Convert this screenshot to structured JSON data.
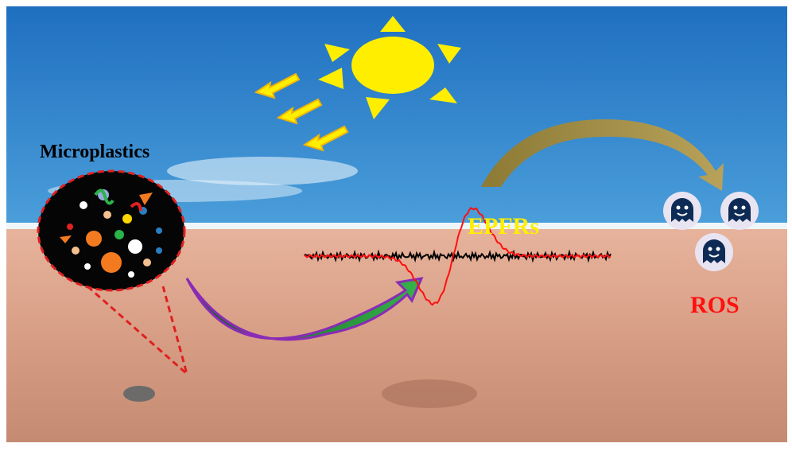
{
  "labels": {
    "microplastics": "Microplastics",
    "epfrs": "EPFRs",
    "ros": "ROS"
  }
}
